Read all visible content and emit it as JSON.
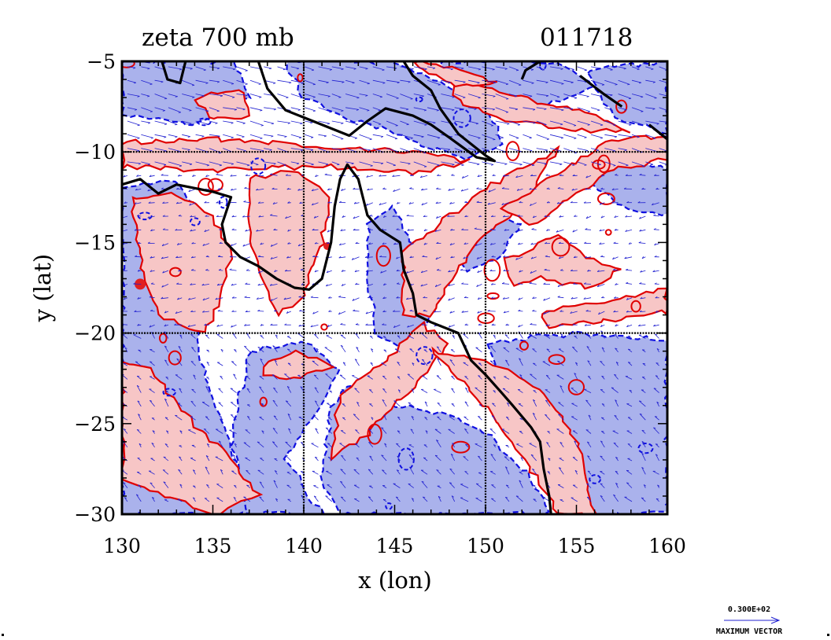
{
  "chart_data": {
    "type": "heatmap",
    "title": "zeta 700 mb",
    "date_label": "011718",
    "xlabel": "x (lon)",
    "ylabel": "y (lat)",
    "xlim": [
      130,
      160
    ],
    "ylim": [
      -30,
      -5
    ],
    "xticks": [
      130,
      135,
      140,
      145,
      150,
      155,
      160
    ],
    "yticks": [
      -5,
      -10,
      -15,
      -20,
      -25,
      -30
    ],
    "grid_lines": {
      "lon": [
        140,
        150
      ],
      "lat": [
        -10,
        -20
      ]
    },
    "colors": {
      "positive_fill": "#f7c6c6",
      "positive_line": "#e00000",
      "negative_fill": "#aab2ec",
      "negative_line": "#1010e0",
      "coast": "#000000",
      "vectors": "#2020d0"
    },
    "legend": {
      "max_vector_value": "0.300E+02",
      "max_vector_label": "MAXIMUM VECTOR"
    }
  }
}
